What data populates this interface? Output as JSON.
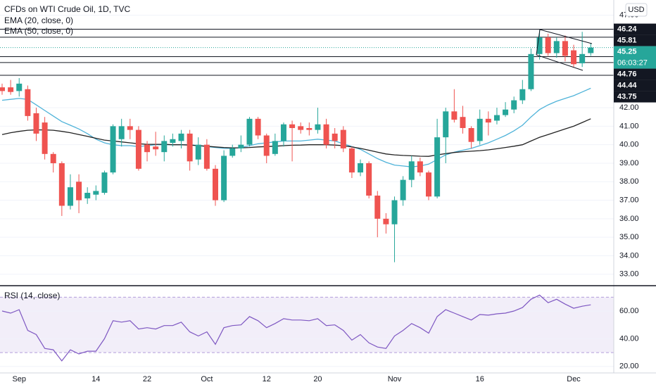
{
  "chart_data": [
    {
      "type": "candlestick",
      "title": "CFDs on WTI Crude Oil, 1D, TVC",
      "currency": "USD",
      "countdown": "06:03:27",
      "categories": [
        null,
        null,
        "Sep",
        null,
        null,
        null,
        null,
        null,
        null,
        null,
        null,
        "14",
        null,
        null,
        null,
        null,
        null,
        "22",
        null,
        null,
        null,
        null,
        null,
        null,
        "Oct",
        null,
        null,
        null,
        null,
        null,
        null,
        "12",
        null,
        null,
        null,
        null,
        null,
        "20",
        null,
        null,
        null,
        null,
        null,
        null,
        null,
        null,
        "Nov",
        null,
        null,
        null,
        null,
        null,
        null,
        null,
        null,
        null,
        "16",
        null,
        null,
        null,
        null,
        null,
        null,
        null,
        null,
        null,
        null,
        "Dec",
        null,
        null
      ],
      "open": [
        43.1,
        43.1,
        42.9,
        43.0,
        41.7,
        41.2,
        39.5,
        39.0,
        36.7,
        38.0,
        37.1,
        37.3,
        37.4,
        38.5,
        40.3,
        41.0,
        40.8,
        40.0,
        39.9,
        39.6,
        40.1,
        40.2,
        40.6,
        39.2,
        40.0,
        38.7,
        37.0,
        39.4,
        39.8,
        40.0,
        41.4,
        40.5,
        39.5,
        40.2,
        41.1,
        41.0,
        40.9,
        40.8,
        41.1,
        40.6,
        40.8,
        39.8,
        38.5,
        39.0,
        37.25,
        36.0,
        35.7,
        37.0,
        38.1,
        39.1,
        38.5,
        37.2,
        40.4,
        41.8,
        41.5,
        40.9,
        40.2,
        41.4,
        41.3,
        41.6,
        41.9,
        42.4,
        43.0,
        44.9,
        45.8,
        44.95,
        45.6,
        45.1,
        44.4,
        44.95
      ],
      "high": [
        43.3,
        43.5,
        43.6,
        43.2,
        42.0,
        41.5,
        39.6,
        39.1,
        38.4,
        38.4,
        37.7,
        37.8,
        38.6,
        41.1,
        41.4,
        41.4,
        41.0,
        40.2,
        40.7,
        40.5,
        40.6,
        40.8,
        40.8,
        40.4,
        40.3,
        38.9,
        39.7,
        40.0,
        40.5,
        41.5,
        41.5,
        40.6,
        40.6,
        41.2,
        41.3,
        41.2,
        41.2,
        42.0,
        41.4,
        40.9,
        41.0,
        39.9,
        39.2,
        39.1,
        37.5,
        36.3,
        37.2,
        38.3,
        39.4,
        39.3,
        38.6,
        41.4,
        42.0,
        43.0,
        42.1,
        41.0,
        41.9,
        41.8,
        42.0,
        42.3,
        42.6,
        43.5,
        45.2,
        46.2,
        46.0,
        45.8,
        45.9,
        45.4,
        46.1,
        45.5
      ],
      "low": [
        42.7,
        42.7,
        42.6,
        41.3,
        40.2,
        39.2,
        38.5,
        36.15,
        36.5,
        36.3,
        36.8,
        37.0,
        37.3,
        38.4,
        39.9,
        40.3,
        38.6,
        39.1,
        39.4,
        39.1,
        39.9,
        39.8,
        38.6,
        38.9,
        38.6,
        36.7,
        36.9,
        39.3,
        39.6,
        39.9,
        40.3,
        39.0,
        39.4,
        39.9,
        39.1,
        40.6,
        40.5,
        40.6,
        39.8,
        39.8,
        39.6,
        38.2,
        38.3,
        37.1,
        35.0,
        35.2,
        33.65,
        36.7,
        37.7,
        38.3,
        37.0,
        37.1,
        39.0,
        41.2,
        40.6,
        39.8,
        40.0,
        40.5,
        41.1,
        41.5,
        41.7,
        42.2,
        42.9,
        44.6,
        44.8,
        44.7,
        44.5,
        44.2,
        44.2,
        44.8
      ],
      "close": [
        42.9,
        42.85,
        43.3,
        41.55,
        40.6,
        39.5,
        39.0,
        36.7,
        37.7,
        37.0,
        37.4,
        37.5,
        38.5,
        41.0,
        41.0,
        40.8,
        38.7,
        39.6,
        39.75,
        40.2,
        40.3,
        40.6,
        39.1,
        40.0,
        38.7,
        37.0,
        39.4,
        39.8,
        40.0,
        41.4,
        40.5,
        39.4,
        40.2,
        41.1,
        40.9,
        40.8,
        40.8,
        41.1,
        40.0,
        40.2,
        39.8,
        38.5,
        39.0,
        37.25,
        36.0,
        35.7,
        37.0,
        38.1,
        39.1,
        38.5,
        37.2,
        40.4,
        41.8,
        41.35,
        40.9,
        40.15,
        41.4,
        41.2,
        41.6,
        41.9,
        42.4,
        43.0,
        44.9,
        45.8,
        44.95,
        45.6,
        44.8,
        44.35,
        44.9,
        45.25
      ],
      "up_color": "#26a69a",
      "down_color": "#ef5350",
      "series": [
        {
          "name": "EMA (20, close, 0)",
          "color": "#4fb3d9",
          "values": [
            42.4,
            42.45,
            42.5,
            42.45,
            42.15,
            41.85,
            41.55,
            41.25,
            41.05,
            40.85,
            40.6,
            40.3,
            40.1,
            40.0,
            39.95,
            39.95,
            39.9,
            39.95,
            40.0,
            40.0,
            40.0,
            40.0,
            40.0,
            39.95,
            39.9,
            39.85,
            39.8,
            39.8,
            39.85,
            39.95,
            40.05,
            40.1,
            40.15,
            40.2,
            40.2,
            40.2,
            40.25,
            40.3,
            40.25,
            40.2,
            40.05,
            39.9,
            39.75,
            39.5,
            39.25,
            39.05,
            38.9,
            38.85,
            38.8,
            38.85,
            38.95,
            39.2,
            39.45,
            39.6,
            39.7,
            39.8,
            39.95,
            40.1,
            40.3,
            40.5,
            40.75,
            41.05,
            41.5,
            41.9,
            42.15,
            42.35,
            42.5,
            42.65,
            42.85,
            43.05
          ]
        },
        {
          "name": "EMA (50, close, 0)",
          "color": "#222222",
          "values": [
            40.55,
            40.65,
            40.72,
            40.78,
            40.8,
            40.8,
            40.78,
            40.72,
            40.65,
            40.55,
            40.45,
            40.35,
            40.25,
            40.2,
            40.15,
            40.1,
            40.05,
            40.02,
            40.02,
            40.02,
            40.0,
            40.0,
            39.98,
            39.95,
            39.92,
            39.88,
            39.85,
            39.83,
            39.83,
            39.85,
            39.88,
            39.9,
            39.92,
            39.95,
            39.97,
            39.98,
            40.0,
            40.0,
            40.0,
            39.98,
            39.95,
            39.88,
            39.8,
            39.7,
            39.6,
            39.5,
            39.45,
            39.42,
            39.4,
            39.38,
            39.37,
            39.45,
            39.52,
            39.58,
            39.62,
            39.65,
            39.68,
            39.72,
            39.78,
            39.85,
            39.92,
            40.0,
            40.2,
            40.4,
            40.55,
            40.7,
            40.85,
            41.0,
            41.2,
            41.4
          ]
        }
      ],
      "levels": [
        46.24,
        45.81,
        44.76,
        44.44,
        43.75
      ],
      "last_price": 45.25,
      "ylim": [
        32.42,
        47.82
      ],
      "yticks": [
        {
          "value": 33,
          "label": "33.00"
        },
        {
          "value": 34,
          "label": "34.00"
        },
        {
          "value": 35,
          "label": "35.00"
        },
        {
          "value": 36,
          "label": "36.00"
        },
        {
          "value": 37,
          "label": "37.00"
        },
        {
          "value": 38,
          "label": "38.00"
        },
        {
          "value": 39,
          "label": "39.00"
        },
        {
          "value": 40,
          "label": "40.00"
        },
        {
          "value": 41,
          "label": "41.00"
        },
        {
          "value": 42,
          "label": "42.00"
        },
        {
          "value": 47,
          "label": "47.00"
        }
      ],
      "grid": true
    },
    {
      "type": "line",
      "title": "RSI (14, close)",
      "color": "#7e57c2",
      "values": [
        60,
        58.5,
        61,
        46,
        43,
        33,
        32,
        24,
        32,
        29,
        31,
        31,
        40,
        53,
        52,
        53,
        47,
        48,
        47,
        49.5,
        49.5,
        52,
        45,
        42,
        45,
        36,
        48,
        49.5,
        50,
        56,
        53,
        48,
        51,
        54.5,
        53.5,
        53.5,
        53,
        54.5,
        49.5,
        50,
        46,
        39,
        43,
        37,
        34,
        33,
        42,
        46,
        51,
        48,
        44,
        56,
        61,
        58.5,
        56,
        53.5,
        57.5,
        57,
        58,
        58.5,
        60,
        62.5,
        68.5,
        71.5,
        66,
        68.5,
        65,
        62,
        63.5,
        64.5
      ],
      "bands": [
        30,
        70
      ],
      "ylim": [
        15.3,
        77.3
      ],
      "yticks": [
        {
          "value": 20,
          "label": "20.00"
        },
        {
          "value": 40,
          "label": "40.00"
        },
        {
          "value": 60,
          "label": "60.00"
        }
      ],
      "grid": true
    }
  ]
}
